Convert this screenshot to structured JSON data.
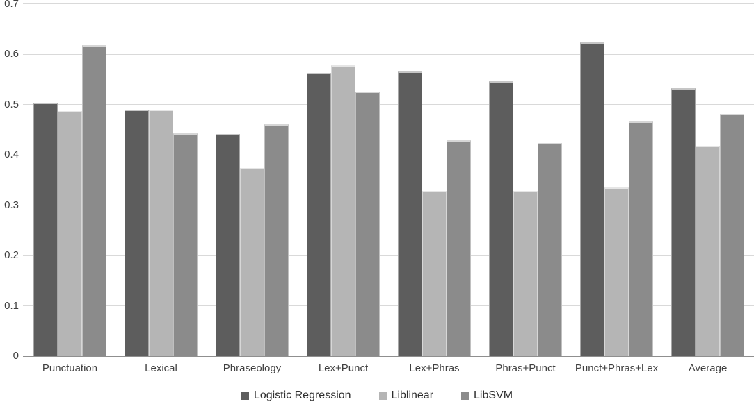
{
  "chart_data": {
    "type": "bar",
    "title": "",
    "xlabel": "",
    "ylabel": "",
    "categories": [
      "Punctuation",
      "Lexical",
      "Phraseology",
      "Lex+Punct",
      "Lex+Phras",
      "Phras+Punct",
      "Punct+Phras+Lex",
      "Average"
    ],
    "series": [
      {
        "name": "Logistic Regression",
        "color": "#5d5d5d",
        "values": [
          0.503,
          0.49,
          0.441,
          0.563,
          0.566,
          0.546,
          0.623,
          0.533
        ]
      },
      {
        "name": "Liblinear",
        "color": "#b5b5b5",
        "values": [
          0.487,
          0.49,
          0.374,
          0.578,
          0.328,
          0.328,
          0.335,
          0.418
        ]
      },
      {
        "name": "LibSVM",
        "color": "#8b8b8b",
        "values": [
          0.618,
          0.443,
          0.461,
          0.525,
          0.429,
          0.424,
          0.466,
          0.481
        ]
      }
    ],
    "ylim": [
      0,
      0.7
    ],
    "yticks": [
      0,
      0.1,
      0.2,
      0.3,
      0.4,
      0.5,
      0.6,
      0.7
    ],
    "ytick_labels": [
      "0",
      "0.1",
      "0.2",
      "0.3",
      "0.4",
      "0.5",
      "0.6",
      "0.7"
    ],
    "grid": true,
    "legend_position": "bottom"
  },
  "colors": {
    "background": "#ffffff",
    "gridline": "#d9d9d9",
    "axis_line": "#8f8f8f",
    "axis_text": "#404040",
    "legend_text": "#2e2e2e"
  }
}
